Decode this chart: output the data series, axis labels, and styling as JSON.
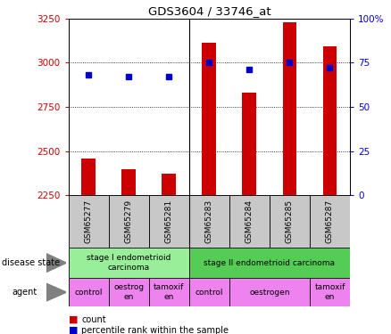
{
  "title": "GDS3604 / 33746_at",
  "samples": [
    "GSM65277",
    "GSM65279",
    "GSM65281",
    "GSM65283",
    "GSM65284",
    "GSM65285",
    "GSM65287"
  ],
  "counts": [
    2460,
    2400,
    2375,
    3110,
    2830,
    3230,
    3090
  ],
  "percentiles": [
    68,
    67,
    67,
    75,
    71,
    75,
    72
  ],
  "ymin": 2250,
  "ymax": 3250,
  "yticks": [
    2250,
    2500,
    2750,
    3000,
    3250
  ],
  "right_yticks": [
    0,
    25,
    50,
    75,
    100
  ],
  "right_ytick_labels": [
    "0",
    "25",
    "50",
    "75",
    "100%"
  ],
  "bar_color": "#cc0000",
  "dot_color": "#0000cc",
  "disease_state_groups": [
    {
      "label": "stage I endometrioid\ncarcinoma",
      "start": 0,
      "end": 3,
      "color": "#99ee99"
    },
    {
      "label": "stage II endometrioid carcinoma",
      "start": 3,
      "end": 7,
      "color": "#55cc55"
    }
  ],
  "agent_groups": [
    {
      "label": "control",
      "start": 0,
      "end": 1,
      "color": "#ee82ee"
    },
    {
      "label": "oestrog\nen",
      "start": 1,
      "end": 2,
      "color": "#ee82ee"
    },
    {
      "label": "tamoxif\nen",
      "start": 2,
      "end": 3,
      "color": "#ee82ee"
    },
    {
      "label": "control",
      "start": 3,
      "end": 4,
      "color": "#ee82ee"
    },
    {
      "label": "oestrogen",
      "start": 4,
      "end": 6,
      "color": "#ee82ee"
    },
    {
      "label": "tamoxif\nen",
      "start": 6,
      "end": 7,
      "color": "#ee82ee"
    }
  ],
  "legend_count_color": "#cc0000",
  "legend_percentile_color": "#0000cc",
  "axis_label_color_left": "#cc0000",
  "axis_label_color_right": "#0000cc",
  "background_color": "#ffffff",
  "plot_bg_color": "#ffffff",
  "tick_bg_color": "#c8c8c8"
}
